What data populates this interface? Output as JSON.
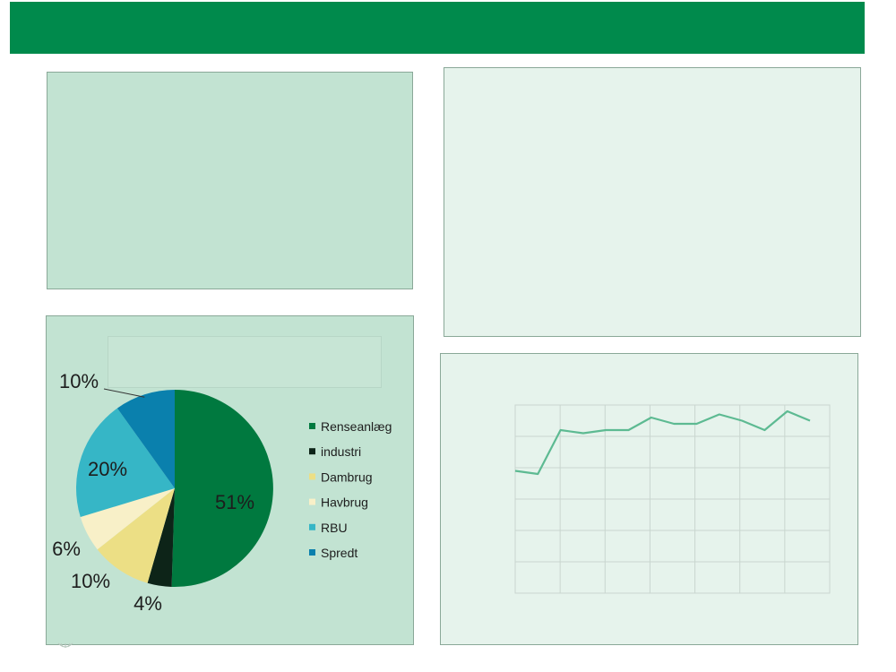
{
  "chart_data": [
    {
      "type": "pie",
      "slices": [
        {
          "name": "Renseanlæg",
          "value": 51,
          "label": "51%",
          "color": "#00793f"
        },
        {
          "name": "industri",
          "value": 4,
          "label": "4%",
          "color": "#0d2418"
        },
        {
          "name": "Dambrug",
          "value": 10,
          "label": "10%",
          "color": "#ecdf85"
        },
        {
          "name": "Havbrug",
          "value": 6,
          "label": "6%",
          "color": "#f8f0c8"
        },
        {
          "name": "RBU",
          "value": 20,
          "label": "20%",
          "color": "#36b6c6"
        },
        {
          "name": "Spredt",
          "value": 10,
          "label": "10%",
          "color": "#0a80ad"
        }
      ],
      "legend_position": "right"
    },
    {
      "type": "line",
      "x": [
        1,
        2,
        3,
        4,
        5,
        6,
        7,
        8,
        9,
        10,
        11,
        12,
        13,
        14
      ],
      "series": [
        {
          "values": [
            3.9,
            3.8,
            5.2,
            5.1,
            5.2,
            5.2,
            5.6,
            5.4,
            5.4,
            5.7,
            5.5,
            5.2,
            5.8,
            5.5
          ],
          "color": "#5dba92"
        }
      ],
      "ylim": [
        0,
        6
      ],
      "grid": true
    }
  ]
}
